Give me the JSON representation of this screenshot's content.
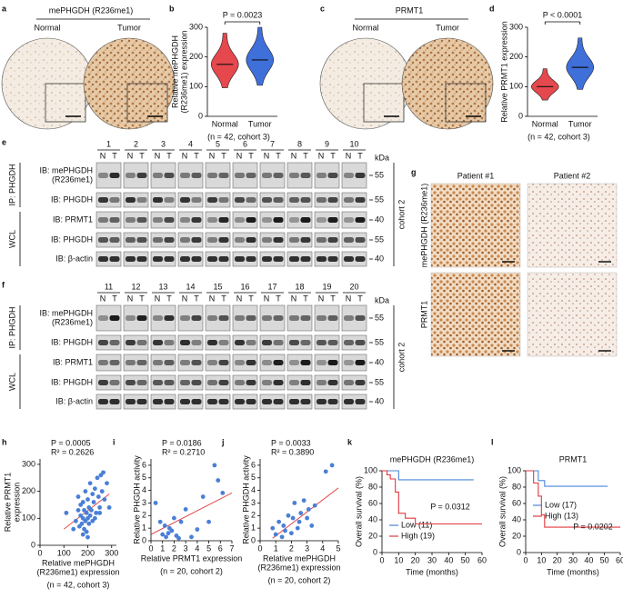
{
  "images": [
    {
      "letter": "a",
      "title": "mePHGDH (R236me1)",
      "labels": [
        "Normal",
        "Tumor"
      ]
    },
    {
      "letter": "c",
      "title": "PRMT1",
      "labels": [
        "Normal",
        "Tumor"
      ]
    }
  ],
  "micrographs": {
    "letter": "g",
    "columns": [
      "Patient #1",
      "Patient #2"
    ],
    "rows": [
      "mePHGDH (R236me1)",
      "PRMT1"
    ]
  },
  "blots": [
    {
      "letter": "e",
      "lanes": [
        "1",
        "2",
        "3",
        "4",
        "5",
        "6",
        "7",
        "8",
        "9",
        "10"
      ],
      "lane_labels": [
        "N",
        "T"
      ],
      "rows": [
        [
          "IB: mePHGDH",
          "(R236me1)"
        ],
        [
          "IB: PHGDH"
        ],
        [
          "IB: PRMT1"
        ],
        [
          "IB: PHGDH"
        ],
        [
          "IB: β-actin"
        ]
      ],
      "kda": [
        55,
        55,
        40,
        55,
        40
      ],
      "kda_title": "kDa",
      "ip": "IP: PHGDH",
      "wcl": "WCL",
      "cohort": "cohort 2"
    },
    {
      "letter": "f",
      "lanes": [
        "11",
        "12",
        "13",
        "14",
        "15",
        "16",
        "17",
        "18",
        "19",
        "20"
      ],
      "lane_labels": [
        "N",
        "T"
      ],
      "rows": [
        [
          "IB: mePHGDH",
          "(R236me1)"
        ],
        [
          "IB: PHGDH"
        ],
        [
          "IB: PRMT1"
        ],
        [
          "IB: PHGDH"
        ],
        [
          "IB: β-actin"
        ]
      ],
      "kda": [
        55,
        55,
        40,
        55,
        40
      ],
      "kda_title": "kDa",
      "ip": "IP: PHGDH",
      "wcl": "WCL",
      "cohort": "cohort 2"
    }
  ],
  "chart_data": [
    {
      "type": "violin",
      "letter": "b",
      "annotation": "P = 0.0023",
      "ylabel": [
        "Relative mePHGDH",
        "(R236me1) expression"
      ],
      "categories": [
        "Normal",
        "Tumor"
      ],
      "medians": [
        175,
        190
      ],
      "colors": [
        "#e5484d",
        "#3f6fd9"
      ],
      "ylim": [
        0,
        300
      ],
      "yticks": [
        0,
        100,
        200,
        300
      ],
      "note": "(n = 42, cohort 3)"
    },
    {
      "type": "violin",
      "letter": "d",
      "annotation": "P < 0.0001",
      "ylabel": [
        "Relative PRMT1 expression"
      ],
      "categories": [
        "Normal",
        "Tumor"
      ],
      "medians": [
        100,
        165
      ],
      "colors": [
        "#e5484d",
        "#3f6fd9"
      ],
      "ylim": [
        0,
        300
      ],
      "yticks": [
        0,
        100,
        200,
        300
      ],
      "note": "(n = 42, cohort 3)"
    },
    {
      "type": "scatter",
      "letter": "h",
      "annotation": [
        "P = 0.0005",
        "R² = 0.2626"
      ],
      "xlabel": [
        "Relative mePHGDH",
        "(R236me1) expression"
      ],
      "ylabel": [
        "Relative PRMT1",
        "expression"
      ],
      "note": "(n = 42, cohort 3)",
      "color": "#4a7fd6",
      "fit_color": "#e0393e",
      "x": [
        110,
        140,
        150,
        160,
        165,
        170,
        170,
        175,
        180,
        180,
        185,
        185,
        190,
        190,
        195,
        195,
        200,
        200,
        205,
        205,
        210,
        210,
        215,
        220,
        220,
        225,
        230,
        235,
        240,
        245,
        250,
        255,
        260,
        265,
        270,
        280,
        290,
        180,
        200,
        160,
        230,
        250
      ],
      "values": [
        120,
        60,
        90,
        130,
        70,
        150,
        110,
        80,
        100,
        160,
        60,
        130,
        90,
        200,
        120,
        50,
        170,
        100,
        140,
        80,
        110,
        230,
        130,
        190,
        90,
        160,
        210,
        120,
        250,
        180,
        140,
        260,
        200,
        270,
        170,
        230,
        140,
        40,
        30,
        180,
        100,
        120
      ],
      "trendline": {
        "x": [
          100,
          290
        ],
        "values": [
          60,
          190
        ]
      },
      "xlim": [
        0,
        320
      ],
      "xticks": [
        0,
        100,
        200,
        300
      ],
      "ylim": [
        0,
        320
      ],
      "yticks": [
        0,
        100,
        200,
        300
      ]
    },
    {
      "type": "scatter",
      "letter": "i",
      "annotation": [
        "P = 0.0186",
        "R² = 0.2710"
      ],
      "xlabel": [
        "Relative PRMT1 expression"
      ],
      "ylabel": [
        "Relative PHGDH activity"
      ],
      "note": "(n = 20, cohort 2)",
      "color": "#4a7fd6",
      "fit_color": "#e0393e",
      "x": [
        0.4,
        0.8,
        1.0,
        1.2,
        1.3,
        1.5,
        1.6,
        1.8,
        2.0,
        2.2,
        2.4,
        2.6,
        3.0,
        3.5,
        4.0,
        4.5,
        5.0,
        5.5,
        5.8,
        6.2
      ],
      "values": [
        3.0,
        1.5,
        0.5,
        1.2,
        0.3,
        0.6,
        1.0,
        0.8,
        1.8,
        0.4,
        0.2,
        1.5,
        2.5,
        0.3,
        0.9,
        3.5,
        1.5,
        6.0,
        4.8,
        3.8
      ],
      "trendline": {
        "x": [
          0,
          7
        ],
        "values": [
          0.5,
          3.8
        ]
      },
      "xlim": [
        0,
        7
      ],
      "xticks": [
        0,
        1,
        2,
        3,
        4,
        5,
        6,
        7
      ],
      "ylim": [
        0,
        6.5
      ],
      "yticks": [
        0,
        1,
        2,
        3,
        4,
        5,
        6
      ]
    },
    {
      "type": "scatter",
      "letter": "j",
      "annotation": [
        "P = 0.0033",
        "R² = 0.3890"
      ],
      "xlabel": [
        "Relative mePHGDH",
        "(R236me1) expression"
      ],
      "ylabel": [
        "Relative PHGDH activity"
      ],
      "note": "(n = 20, cohort 2)",
      "color": "#4a7fd6",
      "fit_color": "#e0393e",
      "x": [
        0.8,
        1.0,
        1.2,
        1.4,
        1.5,
        1.6,
        1.8,
        2.0,
        2.1,
        2.2,
        2.4,
        2.5,
        2.6,
        2.8,
        3.0,
        3.1,
        3.3,
        3.5,
        4.2,
        4.6
      ],
      "values": [
        1.0,
        0.5,
        1.5,
        0.3,
        1.2,
        0.8,
        2.0,
        0.6,
        1.8,
        3.0,
        1.0,
        1.5,
        2.2,
        3.2,
        1.8,
        2.5,
        1.2,
        2.8,
        5.5,
        6.0
      ],
      "trendline": {
        "x": [
          0.8,
          5
        ],
        "values": [
          0.2,
          4.2
        ]
      },
      "xlim": [
        0,
        5
      ],
      "xticks": [
        0,
        1,
        2,
        3,
        4,
        5
      ],
      "ylim": [
        0,
        6.5
      ],
      "yticks": [
        0,
        1,
        2,
        3,
        4,
        5,
        6
      ]
    },
    {
      "type": "survival",
      "letter": "k",
      "title": "mePHGDH (R236me1)",
      "annotation": "P = 0.0312",
      "xlabel": [
        "Time (months)"
      ],
      "ylabel": [
        "Overall survival (%)"
      ],
      "legend": "lower-left",
      "series": [
        {
          "name": "Low (11)",
          "color": "#4a86d8",
          "x": [
            0,
            10,
            55
          ],
          "values": [
            100,
            89,
            89
          ]
        },
        {
          "name": "High (19)",
          "color": "#e0393e",
          "x": [
            0,
            3,
            5,
            8,
            10,
            14,
            20,
            60
          ],
          "values": [
            100,
            95,
            90,
            74,
            48,
            42,
            35,
            35
          ]
        }
      ],
      "xlim": [
        0,
        60
      ],
      "xticks": [
        0,
        10,
        20,
        30,
        40,
        50,
        60
      ],
      "ylim": [
        0,
        100
      ],
      "yticks": [
        0,
        20,
        40,
        60,
        80,
        100
      ]
    },
    {
      "type": "survival",
      "letter": "l",
      "title": "PRMT1",
      "annotation": "P = 0.0202",
      "xlabel": [
        "Time (months)"
      ],
      "ylabel": [
        "Overall survival (%)"
      ],
      "legend": "upper-left",
      "series": [
        {
          "name": "Low (17)",
          "color": "#4a86d8",
          "x": [
            0,
            8,
            12,
            52
          ],
          "values": [
            100,
            88,
            81,
            81
          ]
        },
        {
          "name": "High (13)",
          "color": "#e0393e",
          "x": [
            0,
            5,
            8,
            10,
            12,
            60
          ],
          "values": [
            100,
            85,
            69,
            46,
            31,
            31
          ]
        }
      ],
      "xlim": [
        0,
        60
      ],
      "xticks": [
        0,
        10,
        20,
        30,
        40,
        50,
        60
      ],
      "ylim": [
        0,
        100
      ],
      "yticks": [
        0,
        20,
        40,
        60,
        80,
        100
      ]
    }
  ]
}
